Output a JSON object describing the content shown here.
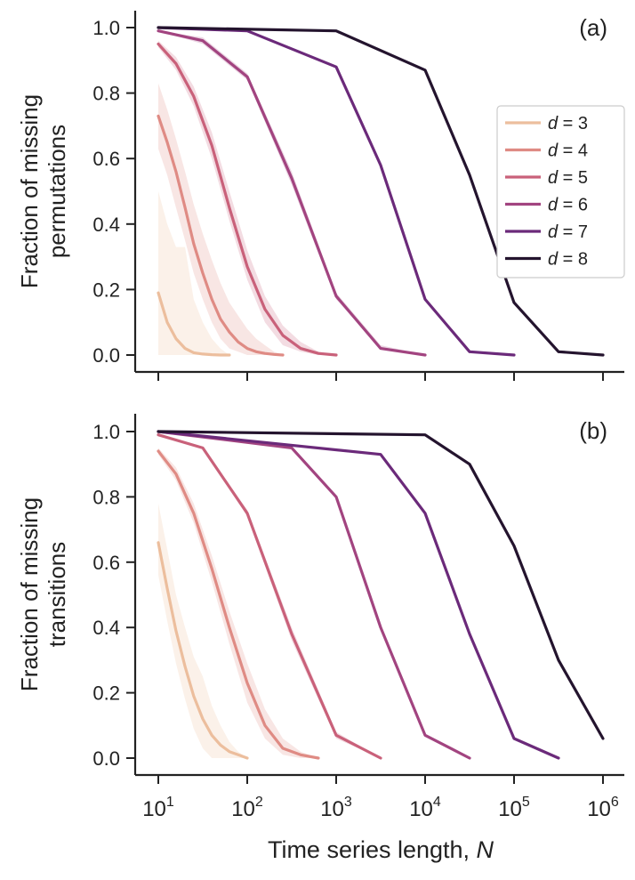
{
  "figure": {
    "xlabel_main": "Time series length, ",
    "xlabel_var": "N",
    "legend_var": "d",
    "legend_eq": " = "
  },
  "chart_data": [
    {
      "type": "line",
      "panel": "(a)",
      "ylabel_line1": "Fraction of missing",
      "ylabel_line2": "permutations",
      "xscale": "log",
      "xlim": [
        10,
        1000000
      ],
      "ylim": [
        0,
        1
      ],
      "yticks": [
        "0.0",
        "0.2",
        "0.4",
        "0.6",
        "0.8",
        "1.0"
      ],
      "ytick_values": [
        0,
        0.2,
        0.4,
        0.6,
        0.8,
        1.0
      ],
      "xtick_values": [
        10,
        100,
        1000,
        10000,
        100000,
        1000000
      ],
      "xtick_labels": [],
      "legend_location": "right",
      "series": [
        {
          "name": "d = 3",
          "d": "3",
          "color": "#ecbe9d",
          "x": [
            10,
            12.6,
            15.8,
            20,
            25,
            31.6,
            40,
            50,
            63
          ],
          "y": [
            0.19,
            0.1,
            0.05,
            0.02,
            0.007,
            0.003,
            0.001,
            0,
            0
          ],
          "band_lo": [
            0,
            0,
            0,
            0,
            0,
            0,
            0,
            0,
            0
          ],
          "band_hi": [
            0.5,
            0.4,
            0.33,
            0.33,
            0.17,
            0.1,
            0.05,
            0.02,
            0
          ]
        },
        {
          "name": "d = 4",
          "d": "4",
          "color": "#df8b84",
          "x": [
            10,
            12.6,
            15.8,
            20,
            25,
            31.6,
            40,
            50,
            63,
            79,
            100,
            126,
            158,
            200,
            251
          ],
          "y": [
            0.73,
            0.65,
            0.56,
            0.45,
            0.34,
            0.25,
            0.17,
            0.11,
            0.07,
            0.04,
            0.02,
            0.01,
            0.005,
            0.002,
            0
          ],
          "band_lo": [
            0.63,
            0.55,
            0.45,
            0.35,
            0.25,
            0.17,
            0.1,
            0.05,
            0.02,
            0.01,
            0,
            0,
            0,
            0,
            0
          ],
          "band_hi": [
            0.83,
            0.75,
            0.66,
            0.56,
            0.46,
            0.37,
            0.29,
            0.22,
            0.16,
            0.12,
            0.08,
            0.05,
            0.03,
            0.01,
            0
          ]
        },
        {
          "name": "d = 5",
          "d": "5",
          "color": "#c9617a",
          "x": [
            10,
            15.8,
            25,
            40,
            63,
            100,
            158,
            251,
            398,
            631,
            1000
          ],
          "y": [
            0.95,
            0.89,
            0.79,
            0.64,
            0.45,
            0.27,
            0.14,
            0.06,
            0.02,
            0.005,
            0
          ],
          "band_lo": [
            0.94,
            0.87,
            0.76,
            0.6,
            0.41,
            0.23,
            0.1,
            0.03,
            0.01,
            0,
            0
          ],
          "band_hi": [
            0.96,
            0.91,
            0.82,
            0.68,
            0.5,
            0.32,
            0.18,
            0.09,
            0.04,
            0.01,
            0
          ]
        },
        {
          "name": "d = 6",
          "d": "6",
          "color": "#a24480",
          "x": [
            10,
            31.6,
            100,
            316,
            1000,
            3162,
            10000
          ],
          "y": [
            0.99,
            0.96,
            0.85,
            0.54,
            0.18,
            0.02,
            0
          ],
          "band_lo": [
            0.99,
            0.95,
            0.84,
            0.52,
            0.17,
            0.02,
            0
          ],
          "band_hi": [
            0.99,
            0.97,
            0.86,
            0.56,
            0.19,
            0.03,
            0
          ]
        },
        {
          "name": "d = 7",
          "d": "7",
          "color": "#6b2a7a",
          "x": [
            10,
            100,
            1000,
            3162,
            10000,
            31623,
            100000
          ],
          "y": [
            1.0,
            0.99,
            0.88,
            0.58,
            0.17,
            0.01,
            0
          ],
          "band_lo": [
            1.0,
            0.99,
            0.88,
            0.58,
            0.17,
            0.01,
            0
          ],
          "band_hi": [
            1.0,
            0.99,
            0.88,
            0.58,
            0.17,
            0.01,
            0
          ]
        },
        {
          "name": "d = 8",
          "d": "8",
          "color": "#24142e",
          "x": [
            10,
            1000,
            10000,
            31623,
            100000,
            316228,
            1000000
          ],
          "y": [
            1.0,
            0.99,
            0.87,
            0.55,
            0.16,
            0.01,
            0
          ],
          "band_lo": [
            1.0,
            0.99,
            0.87,
            0.55,
            0.16,
            0.01,
            0
          ],
          "band_hi": [
            1.0,
            0.99,
            0.87,
            0.55,
            0.16,
            0.01,
            0
          ]
        }
      ]
    },
    {
      "type": "line",
      "panel": "(b)",
      "ylabel_line1": "Fraction of missing",
      "ylabel_line2": "transitions",
      "xscale": "log",
      "xlim": [
        10,
        1000000
      ],
      "ylim": [
        0,
        1
      ],
      "yticks": [
        "0.0",
        "0.2",
        "0.4",
        "0.6",
        "0.8",
        "1.0"
      ],
      "ytick_values": [
        0,
        0.2,
        0.4,
        0.6,
        0.8,
        1.0
      ],
      "xtick_values": [
        10,
        100,
        1000,
        10000,
        100000,
        1000000
      ],
      "xtick_labels": [
        {
          "base": "10",
          "exp": "1"
        },
        {
          "base": "10",
          "exp": "2"
        },
        {
          "base": "10",
          "exp": "3"
        },
        {
          "base": "10",
          "exp": "4"
        },
        {
          "base": "10",
          "exp": "5"
        },
        {
          "base": "10",
          "exp": "6"
        }
      ],
      "legend_location": "none",
      "series": [
        {
          "name": "d = 3",
          "d": "3",
          "color": "#ecbe9d",
          "x": [
            10,
            12.6,
            15.8,
            20,
            25,
            31.6,
            40,
            50,
            63,
            79,
            100
          ],
          "y": [
            0.66,
            0.52,
            0.39,
            0.28,
            0.19,
            0.12,
            0.07,
            0.04,
            0.02,
            0.01,
            0
          ],
          "band_lo": [
            0.56,
            0.42,
            0.29,
            0.18,
            0.09,
            0.03,
            0,
            0,
            0,
            0,
            0
          ],
          "band_hi": [
            0.78,
            0.64,
            0.5,
            0.4,
            0.31,
            0.25,
            0.16,
            0.1,
            0.05,
            0.02,
            0
          ]
        },
        {
          "name": "d = 4",
          "d": "4",
          "color": "#df8b84",
          "x": [
            10,
            15.8,
            25,
            40,
            63,
            100,
            158,
            251,
            398,
            631
          ],
          "y": [
            0.94,
            0.87,
            0.75,
            0.58,
            0.4,
            0.23,
            0.1,
            0.03,
            0.01,
            0
          ],
          "band_lo": [
            0.93,
            0.85,
            0.72,
            0.54,
            0.35,
            0.17,
            0.06,
            0.01,
            0,
            0
          ],
          "band_hi": [
            0.95,
            0.89,
            0.78,
            0.62,
            0.45,
            0.29,
            0.15,
            0.06,
            0.02,
            0
          ]
        },
        {
          "name": "d = 5",
          "d": "5",
          "color": "#c9617a",
          "x": [
            10,
            31.6,
            100,
            316,
            1000,
            3162
          ],
          "y": [
            0.99,
            0.95,
            0.75,
            0.38,
            0.07,
            0
          ],
          "band_lo": [
            0.99,
            0.95,
            0.74,
            0.36,
            0.06,
            0
          ],
          "band_hi": [
            0.99,
            0.95,
            0.76,
            0.4,
            0.08,
            0
          ]
        },
        {
          "name": "d = 6",
          "d": "6",
          "color": "#a24480",
          "x": [
            10,
            316,
            1000,
            3162,
            10000,
            31623
          ],
          "y": [
            1.0,
            0.95,
            0.8,
            0.4,
            0.07,
            0
          ],
          "band_lo": [
            1.0,
            0.95,
            0.8,
            0.4,
            0.07,
            0
          ],
          "band_hi": [
            1.0,
            0.95,
            0.8,
            0.4,
            0.07,
            0
          ]
        },
        {
          "name": "d = 7",
          "d": "7",
          "color": "#6b2a7a",
          "x": [
            10,
            3162,
            10000,
            31623,
            100000,
            316228
          ],
          "y": [
            1.0,
            0.93,
            0.75,
            0.38,
            0.06,
            0
          ],
          "band_lo": [
            1.0,
            0.93,
            0.75,
            0.38,
            0.06,
            0
          ],
          "band_hi": [
            1.0,
            0.93,
            0.75,
            0.38,
            0.06,
            0
          ]
        },
        {
          "name": "d = 8",
          "d": "8",
          "color": "#24142e",
          "x": [
            10,
            10000,
            31623,
            100000,
            316228,
            1000000
          ],
          "y": [
            1.0,
            0.99,
            0.9,
            0.65,
            0.3,
            0.06
          ],
          "band_lo": [
            1.0,
            0.99,
            0.9,
            0.65,
            0.3,
            0.06
          ],
          "band_hi": [
            1.0,
            0.99,
            0.9,
            0.65,
            0.3,
            0.06
          ]
        }
      ]
    }
  ]
}
